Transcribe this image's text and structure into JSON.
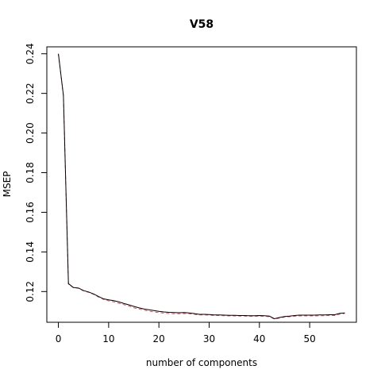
{
  "chart_data": {
    "type": "line",
    "title": "V58",
    "xlabel": "number of components",
    "ylabel": "MSEP",
    "xlim": [
      -2.3,
      59.3
    ],
    "ylim": [
      0.1045,
      0.2435
    ],
    "x_ticks": [
      0,
      10,
      20,
      30,
      40,
      50
    ],
    "y_ticks": [
      0.12,
      0.14,
      0.16,
      0.18,
      0.2,
      0.22,
      0.24
    ],
    "y_tick_labels": [
      "0.12",
      "0.14",
      "0.16",
      "0.18",
      "0.20",
      "0.22",
      "0.24"
    ],
    "grid": false,
    "legend": "none",
    "x": [
      0,
      1,
      2,
      3,
      4,
      5,
      6,
      7,
      8,
      9,
      10,
      11,
      12,
      13,
      14,
      15,
      16,
      17,
      18,
      19,
      20,
      21,
      22,
      23,
      24,
      25,
      26,
      27,
      28,
      29,
      30,
      31,
      32,
      33,
      34,
      35,
      36,
      37,
      38,
      39,
      40,
      41,
      42,
      43,
      44,
      45,
      46,
      47,
      48,
      49,
      50,
      51,
      52,
      53,
      54,
      55,
      56,
      57
    ],
    "series": [
      {
        "style": "solid",
        "color": "#000000",
        "values": [
          0.24,
          0.219,
          0.124,
          0.122,
          0.1218,
          0.1205,
          0.1198,
          0.1188,
          0.1175,
          0.1163,
          0.1158,
          0.1154,
          0.1148,
          0.114,
          0.1133,
          0.1125,
          0.1118,
          0.1112,
          0.1108,
          0.1104,
          0.11,
          0.1097,
          0.1095,
          0.1094,
          0.1093,
          0.1094,
          0.1092,
          0.1089,
          0.1085,
          0.1085,
          0.1084,
          0.1082,
          0.1082,
          0.1081,
          0.108,
          0.108,
          0.1079,
          0.1079,
          0.1078,
          0.1078,
          0.1079,
          0.1078,
          0.1076,
          0.1063,
          0.1069,
          0.1074,
          0.1076,
          0.1079,
          0.1081,
          0.1081,
          0.1081,
          0.1081,
          0.1082,
          0.1082,
          0.1083,
          0.1083,
          0.109,
          0.1092
        ]
      },
      {
        "style": "dashed",
        "color": "#DF536B",
        "values": [
          0.2398,
          0.2188,
          0.1238,
          0.1219,
          0.1216,
          0.1203,
          0.1196,
          0.1186,
          0.1172,
          0.116,
          0.1153,
          0.1148,
          0.1141,
          0.1134,
          0.1127,
          0.1118,
          0.1112,
          0.1106,
          0.1101,
          0.1097,
          0.1094,
          0.1091,
          0.1089,
          0.1088,
          0.1088,
          0.1089,
          0.1088,
          0.1085,
          0.1082,
          0.1082,
          0.1081,
          0.1079,
          0.1079,
          0.1078,
          0.1077,
          0.1077,
          0.1076,
          0.1076,
          0.1075,
          0.1075,
          0.1076,
          0.1075,
          0.1073,
          0.1061,
          0.1066,
          0.1071,
          0.1073,
          0.1075,
          0.1077,
          0.1077,
          0.1077,
          0.1077,
          0.1078,
          0.1078,
          0.1079,
          0.1079,
          0.1086,
          0.1089
        ]
      }
    ]
  }
}
